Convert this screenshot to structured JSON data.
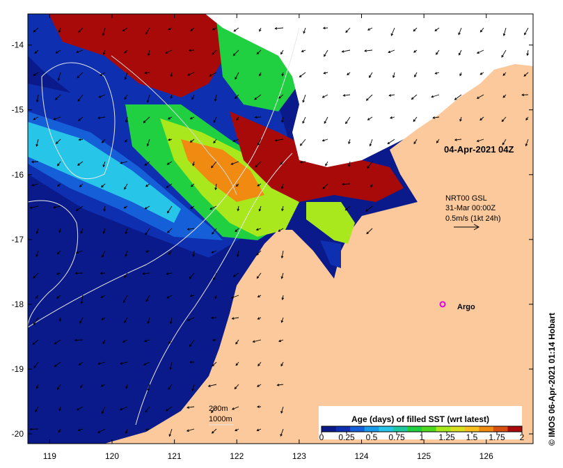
{
  "map": {
    "date_label": "04-Apr-2021 04Z",
    "current_source": "NRT00 GSL",
    "current_time": "31-Mar 00:00Z",
    "current_scale": "0.5m/s (1kt 24h)",
    "argo_label": "Argo",
    "depth_contours": [
      "200m",
      "1000m"
    ],
    "credit": "© IMOS 06-Apr-2021 01:14 Hobart",
    "lon_ticks": [
      "119",
      "120",
      "121",
      "122",
      "123",
      "124",
      "125",
      "126"
    ],
    "lat_ticks": [
      "-14",
      "-15",
      "-16",
      "-17",
      "-18",
      "-19",
      "-20"
    ],
    "lon_range": [
      118.65,
      126.75
    ],
    "lat_range": [
      -20.15,
      -13.52
    ],
    "argo_position": {
      "lon": 125.3,
      "lat": -18.0
    },
    "colorbar": {
      "title": "Age (days) of filled SST (wrt latest)",
      "tick_labels": [
        "0",
        "0.25",
        "0.5",
        "0.75",
        "1",
        "1.25",
        "1.5",
        "1.75",
        "2"
      ],
      "colors": [
        "#0a1a8a",
        "#0d2fb0",
        "#1560d8",
        "#1a9ae8",
        "#27c6e8",
        "#20c8a0",
        "#20d040",
        "#50d820",
        "#a8e81c",
        "#d8e020",
        "#f8c020",
        "#f08a10",
        "#d85010",
        "#a80a0a"
      ]
    },
    "colors": {
      "land": "#fbc99b",
      "no_data": "#ffffff",
      "deep_navy": "#0a1a8a",
      "dark_red": "#a80a0a",
      "argo_marker": "#e000e0"
    }
  }
}
